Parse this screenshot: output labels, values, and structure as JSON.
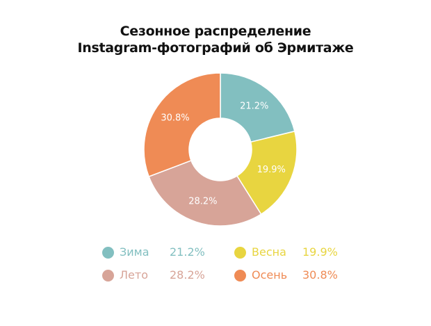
{
  "title_line1": "Сезонное распределение",
  "title_line2": "Instagram-фотографий об Эрмитаже",
  "chart_data": {
    "type": "pie",
    "donut": true,
    "title": "Сезонное распределение Instagram-фотографий об Эрмитаже",
    "categories": [
      "Зима",
      "Весна",
      "Лето",
      "Осень"
    ],
    "values": [
      21.2,
      19.9,
      28.2,
      30.8
    ],
    "value_labels": [
      "21.2%",
      "19.9%",
      "28.2%",
      "30.8%"
    ],
    "colors": [
      "#82bfc0",
      "#e8d540",
      "#d7a498",
      "#ef8b55"
    ],
    "legend_position": "bottom",
    "start": "top, clockwise"
  },
  "legend": [
    {
      "label": "Зима",
      "value": "21.2%",
      "color": "#82bfc0"
    },
    {
      "label": "Весна",
      "value": "19.9%",
      "color": "#e8d540"
    },
    {
      "label": "Лето",
      "value": "28.2%",
      "color": "#d7a498"
    },
    {
      "label": "Осень",
      "value": "30.8%",
      "color": "#ef8b55"
    }
  ]
}
